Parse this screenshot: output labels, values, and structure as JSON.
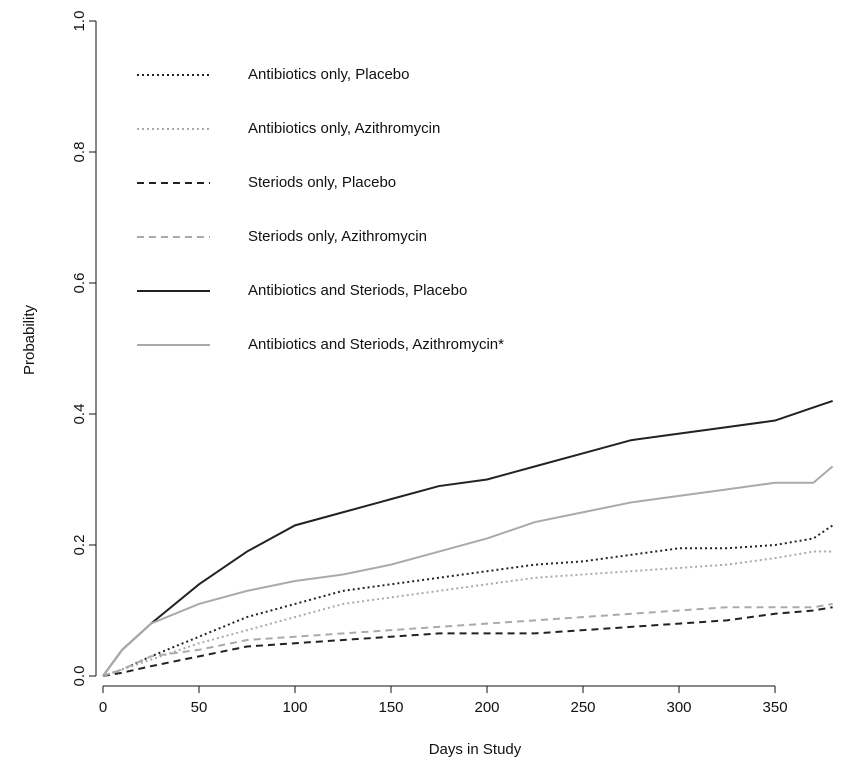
{
  "chart_data": {
    "type": "line",
    "xlabel": "Days in Study",
    "ylabel": "Probability",
    "x": [
      0,
      10,
      25,
      50,
      75,
      100,
      125,
      150,
      175,
      200,
      225,
      250,
      275,
      300,
      325,
      350,
      370,
      380
    ],
    "series": [
      {
        "name": "Antibiotics only, Placebo",
        "color": "#222222",
        "dash": "dotted",
        "values": [
          0,
          0.01,
          0.03,
          0.06,
          0.09,
          0.11,
          0.13,
          0.14,
          0.15,
          0.16,
          0.17,
          0.175,
          0.185,
          0.195,
          0.195,
          0.2,
          0.21,
          0.23
        ]
      },
      {
        "name": "Antibiotics only, Azithromycin",
        "color": "#aaaaaa",
        "dash": "dotted",
        "values": [
          0,
          0.01,
          0.025,
          0.05,
          0.07,
          0.09,
          0.11,
          0.12,
          0.13,
          0.14,
          0.15,
          0.155,
          0.16,
          0.165,
          0.17,
          0.18,
          0.19,
          0.19
        ]
      },
      {
        "name": "Steriods only, Placebo",
        "color": "#222222",
        "dash": "dashed",
        "values": [
          0,
          0.005,
          0.015,
          0.03,
          0.045,
          0.05,
          0.055,
          0.06,
          0.065,
          0.065,
          0.065,
          0.07,
          0.075,
          0.08,
          0.085,
          0.095,
          0.1,
          0.105
        ]
      },
      {
        "name": "Steriods only, Azithromycin",
        "color": "#aaaaaa",
        "dash": "dashed",
        "values": [
          0,
          0.01,
          0.03,
          0.04,
          0.055,
          0.06,
          0.065,
          0.07,
          0.075,
          0.08,
          0.085,
          0.09,
          0.095,
          0.1,
          0.105,
          0.105,
          0.105,
          0.11
        ]
      },
      {
        "name": "Antibiotics and Steriods, Placebo",
        "color": "#222222",
        "dash": "solid",
        "values": [
          0,
          0.04,
          0.08,
          0.14,
          0.19,
          0.23,
          0.25,
          0.27,
          0.29,
          0.3,
          0.32,
          0.34,
          0.36,
          0.37,
          0.38,
          0.39,
          0.41,
          0.42
        ]
      },
      {
        "name": "Antibiotics and Steriods, Azithromycin*",
        "color": "#aaaaaa",
        "dash": "solid",
        "values": [
          0,
          0.04,
          0.08,
          0.11,
          0.13,
          0.145,
          0.155,
          0.17,
          0.19,
          0.21,
          0.235,
          0.25,
          0.265,
          0.275,
          0.285,
          0.295,
          0.295,
          0.32
        ]
      }
    ],
    "xlim": [
      0,
      388
    ],
    "xticks": [
      0,
      50,
      100,
      150,
      200,
      250,
      300,
      350
    ],
    "ylim": [
      0,
      1
    ],
    "yticks": [
      {
        "value": 0,
        "label": "0.0"
      },
      {
        "value": 0.2,
        "label": "0.2"
      },
      {
        "value": 0.4,
        "label": "0.4"
      },
      {
        "value": 0.6,
        "label": "0.6"
      },
      {
        "value": 0.8,
        "label": "0.8"
      },
      {
        "value": 1,
        "label": "1.0"
      }
    ],
    "legend": "top-left"
  }
}
